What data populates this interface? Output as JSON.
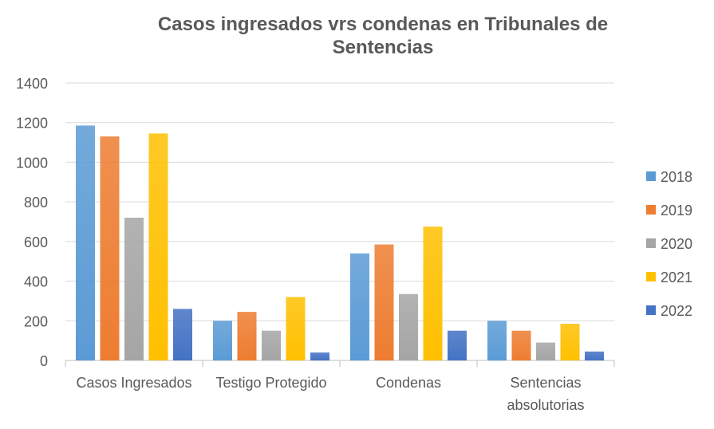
{
  "chart_data": {
    "type": "bar",
    "title": "Casos ingresados vrs condenas en Tribunales de Sentencias",
    "categories": [
      "Casos Ingresados",
      "Testigo Protegido",
      "Condenas",
      "Sentencias absolutorias"
    ],
    "series": [
      {
        "name": "2018",
        "color": "#5B9BD5",
        "values": [
          1185,
          200,
          540,
          200
        ]
      },
      {
        "name": "2019",
        "color": "#ED7D31",
        "values": [
          1130,
          245,
          585,
          150
        ]
      },
      {
        "name": "2020",
        "color": "#A5A5A5",
        "values": [
          720,
          150,
          335,
          90
        ]
      },
      {
        "name": "2021",
        "color": "#FFC000",
        "values": [
          1145,
          320,
          675,
          185
        ]
      },
      {
        "name": "2022",
        "color": "#4472C4",
        "values": [
          260,
          40,
          150,
          45
        ]
      }
    ],
    "ylim": [
      0,
      1400
    ],
    "yticks": [
      0,
      200,
      400,
      600,
      800,
      1000,
      1200,
      1400
    ],
    "grid": true,
    "legend": "right",
    "xlabel": "",
    "ylabel": ""
  }
}
